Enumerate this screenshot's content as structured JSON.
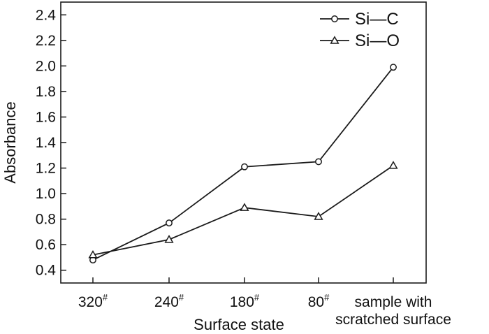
{
  "chart_data": {
    "type": "line",
    "xlabel": "Surface state",
    "ylabel": "Absorbance",
    "categories": [
      {
        "main": "320",
        "sup": "#"
      },
      {
        "main": "240",
        "sup": "#"
      },
      {
        "main": "180",
        "sup": "#"
      },
      {
        "main": "80",
        "sup": "#"
      },
      {
        "main": "sample with",
        "line2": "scratched surface"
      }
    ],
    "ylim": [
      0.3,
      2.5
    ],
    "yticks": [
      "0.4",
      "0.6",
      "0.8",
      "1.0",
      "1.2",
      "1.4",
      "1.6",
      "1.8",
      "2.0",
      "2.2",
      "2.4"
    ],
    "grid": false,
    "legend_position": "top-right",
    "series": [
      {
        "name": "Si—C",
        "marker": "circle",
        "values": [
          0.48,
          0.77,
          1.21,
          1.25,
          1.99
        ]
      },
      {
        "name": "Si—O",
        "marker": "triangle",
        "values": [
          0.52,
          0.64,
          0.89,
          0.82,
          1.22
        ]
      }
    ]
  }
}
